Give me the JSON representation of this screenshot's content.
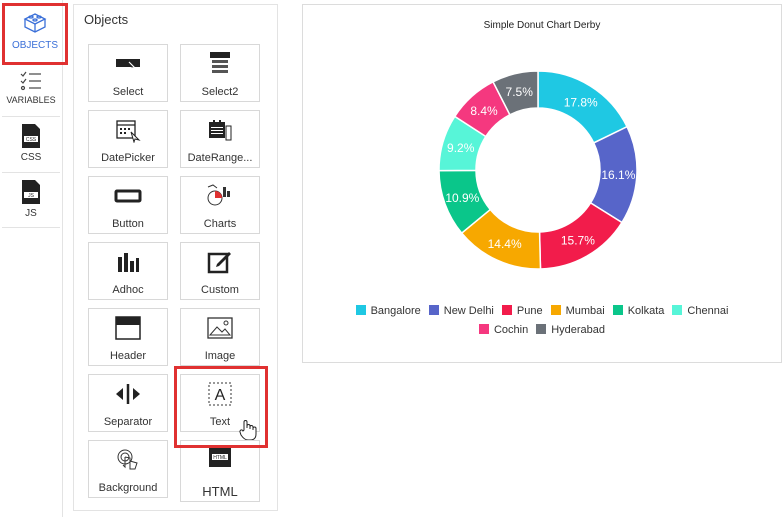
{
  "rail": {
    "items": [
      {
        "label": "OBJECTS",
        "icon": "objects-blocks-icon"
      },
      {
        "label": "VARIABLES",
        "icon": "checklist-icon"
      },
      {
        "label": "CSS",
        "icon": "css-file-icon"
      },
      {
        "label": "JS",
        "icon": "js-file-icon"
      }
    ]
  },
  "palette": {
    "title": "Objects",
    "tiles": [
      {
        "label": "Select",
        "icon": "select-icon"
      },
      {
        "label": "Select2",
        "icon": "select2-icon"
      },
      {
        "label": "DatePicker",
        "icon": "calendar-icon"
      },
      {
        "label": "DateRange...",
        "icon": "date-range-icon"
      },
      {
        "label": "Button",
        "icon": "button-icon"
      },
      {
        "label": "Charts",
        "icon": "charts-icon"
      },
      {
        "label": "Adhoc",
        "icon": "bar-chart-icon"
      },
      {
        "label": "Custom",
        "icon": "custom-edit-icon"
      },
      {
        "label": "Header",
        "icon": "header-icon"
      },
      {
        "label": "Image",
        "icon": "image-icon"
      },
      {
        "label": "Separator",
        "icon": "separator-icon"
      },
      {
        "label": "Text",
        "icon": "text-icon"
      },
      {
        "label": "Background",
        "icon": "touch-icon"
      },
      {
        "label": "HTML",
        "icon": "html-icon"
      }
    ]
  },
  "chart_data": {
    "type": "pie",
    "title": "Simple Donut Chart Derby",
    "donut": true,
    "legend_position": "bottom",
    "categories": [
      "Bangalore",
      "New Delhi",
      "Pune",
      "Mumbai",
      "Kolkata",
      "Chennai",
      "Cochin",
      "Hyderabad"
    ],
    "values": [
      17.8,
      16.1,
      15.7,
      14.4,
      10.9,
      9.2,
      8.4,
      7.5
    ],
    "labels": [
      "17.8%",
      "16.1%",
      "15.7%",
      "14.4%",
      "10.9%",
      "9.2%",
      "8.4%",
      "7.5%"
    ],
    "colors": [
      "#1fc8e3",
      "#5765c9",
      "#f21c4b",
      "#f7a800",
      "#0ac68a",
      "#57f5d8",
      "#f5387f",
      "#6b7178"
    ]
  }
}
